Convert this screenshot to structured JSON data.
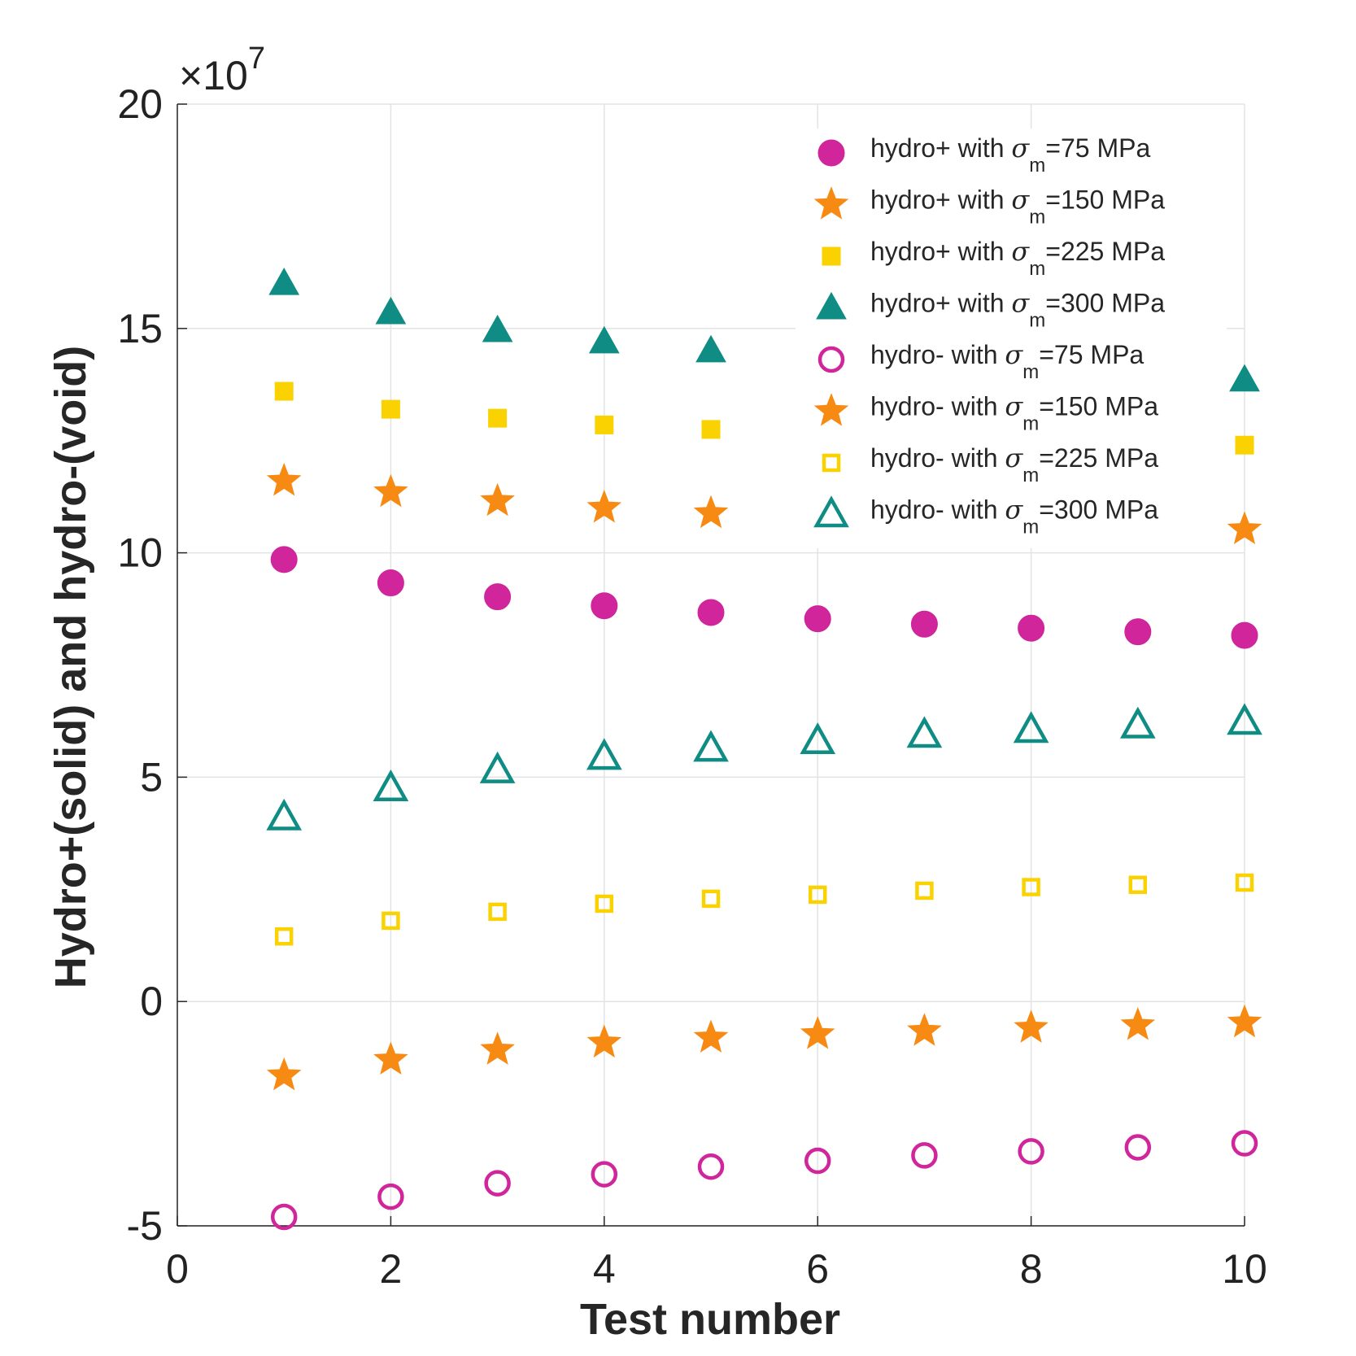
{
  "chart_data": {
    "type": "scatter",
    "xlabel": "Test number",
    "ylabel": "Hydro+(solid) and hydro-(void)",
    "xlim": [
      0,
      10
    ],
    "ylim": [
      -50000000,
      200000000
    ],
    "x_ticks": [
      0,
      2,
      4,
      6,
      8,
      10
    ],
    "y_ticks": [
      -5,
      0,
      5,
      10,
      15,
      20
    ],
    "y_tick_labels": [
      "-5",
      "0",
      "5",
      "10",
      "15",
      "20"
    ],
    "y_multiplier": {
      "base": "×10",
      "exponent": "7"
    },
    "grid": true,
    "legend_position": "top-right",
    "x": [
      1,
      2,
      3,
      4,
      5,
      6,
      7,
      8,
      9,
      10
    ],
    "series": [
      {
        "name": "hydro+ with σm=75 MPa",
        "legend": {
          "prefix": "hydro+ with ",
          "sigma": "σ",
          "sub": "m",
          "suffix": "=75 MPa"
        },
        "marker": "circle",
        "filled": true,
        "color": "#D0259B",
        "values": [
          98500000,
          93300000,
          90200000,
          88200000,
          86700000,
          85300000,
          84100000,
          83200000,
          82400000,
          81600000
        ]
      },
      {
        "name": "hydro+ with σm=150 MPa",
        "legend": {
          "prefix": "hydro+ with ",
          "sigma": "σ",
          "sub": "m",
          "suffix": "=150 MPa"
        },
        "marker": "star",
        "filled": true,
        "color": "#F78A12",
        "values": [
          116000000,
          113500000,
          111500000,
          110000000,
          108800000,
          107800000,
          107000000,
          106300000,
          105700000,
          105200000
        ]
      },
      {
        "name": "hydro+ with σm=225 MPa",
        "legend": {
          "prefix": "hydro+ with ",
          "sigma": "σ",
          "sub": "m",
          "suffix": "=225 MPa"
        },
        "marker": "square",
        "filled": true,
        "color": "#FAD201",
        "values": [
          136000000,
          132000000,
          130000000,
          128500000,
          127500000,
          126600000,
          125800000,
          125100000,
          124500000,
          124000000
        ]
      },
      {
        "name": "hydro+ with σm=300 MPa",
        "legend": {
          "prefix": "hydro+ with ",
          "sigma": "σ",
          "sub": "m",
          "suffix": "=300 MPa"
        },
        "marker": "triangle",
        "filled": true,
        "color": "#0F8C83",
        "values": [
          160000000,
          153500000,
          149500000,
          147000000,
          145000000,
          143500000,
          142000000,
          140800000,
          139700000,
          138500000
        ]
      },
      {
        "name": "hydro- with σm=75 MPa",
        "legend": {
          "prefix": "hydro- with ",
          "sigma": "σ",
          "sub": "m",
          "suffix": "=75 MPa"
        },
        "marker": "circle",
        "filled": false,
        "color": "#D0259B",
        "values": [
          -48000000,
          -43500000,
          -40500000,
          -38500000,
          -36800000,
          -35500000,
          -34300000,
          -33400000,
          -32500000,
          -31600000
        ]
      },
      {
        "name": "hydro- with σm=150 MPa",
        "legend": {
          "prefix": "hydro- with ",
          "sigma": "σ",
          "sub": "m",
          "suffix": "=150 MPa"
        },
        "marker": "star",
        "filled": true,
        "color": "#F78A12",
        "values": [
          -16500000,
          -13000000,
          -10800000,
          -9200000,
          -8100000,
          -7300000,
          -6600000,
          -5900000,
          -5300000,
          -4700000
        ]
      },
      {
        "name": "hydro- with σm=225 MPa",
        "legend": {
          "prefix": "hydro- with ",
          "sigma": "σ",
          "sub": "m",
          "suffix": "=225 MPa"
        },
        "marker": "square",
        "filled": false,
        "color": "#FAD201",
        "values": [
          14500000,
          18000000,
          20000000,
          21800000,
          22900000,
          23800000,
          24700000,
          25500000,
          26000000,
          26500000
        ]
      },
      {
        "name": "hydro- with σm=300 MPa",
        "legend": {
          "prefix": "hydro- with ",
          "sigma": "σ",
          "sub": "m",
          "suffix": "=300 MPa"
        },
        "marker": "triangle",
        "filled": false,
        "color": "#0F8C83",
        "values": [
          41000000,
          47500000,
          51500000,
          54500000,
          56300000,
          58000000,
          59400000,
          60500000,
          61500000,
          62300000
        ]
      }
    ]
  }
}
